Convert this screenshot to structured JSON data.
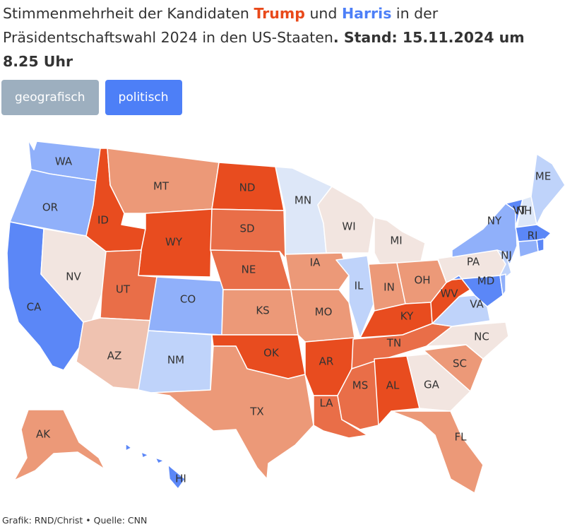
{
  "header": {
    "title_part1": "Stimmenmehrheit der Kandidaten ",
    "trump": "Trump",
    "title_part2": " und ",
    "harris": "Harris",
    "title_part3": " in der Präsidentschaftswahl 2024 in den US-Staaten",
    "stand": ". Stand: 15.11.2024 um 8.25 Uhr"
  },
  "tabs": {
    "geografisch": "geografisch",
    "politisch": "politisch",
    "active": "politisch"
  },
  "colors": {
    "trump": "#e9491a",
    "harris": "#4d7ff7",
    "tab_inactive": "#9dafbf",
    "tab_active": "#4d7ff7",
    "rep_strong": "#e84c1f",
    "rep_medium": "#e96e48",
    "rep_light": "#ec9978",
    "rep_faint": "#efc2b0",
    "tossup": "#f2e5e0",
    "dem_faint": "#dde7f8",
    "dem_light": "#bfd3fa",
    "dem_medium": "#90b0fa",
    "dem_strong": "#5b87f7"
  },
  "states": [
    {
      "id": "WA",
      "level": "dem_medium"
    },
    {
      "id": "OR",
      "level": "dem_medium"
    },
    {
      "id": "CA",
      "level": "dem_strong"
    },
    {
      "id": "NV",
      "level": "tossup"
    },
    {
      "id": "ID",
      "level": "rep_strong"
    },
    {
      "id": "MT",
      "level": "rep_light"
    },
    {
      "id": "WY",
      "level": "rep_strong"
    },
    {
      "id": "UT",
      "level": "rep_medium"
    },
    {
      "id": "AZ",
      "level": "rep_faint"
    },
    {
      "id": "CO",
      "level": "dem_medium"
    },
    {
      "id": "NM",
      "level": "dem_light"
    },
    {
      "id": "ND",
      "level": "rep_strong"
    },
    {
      "id": "SD",
      "level": "rep_medium"
    },
    {
      "id": "NE",
      "level": "rep_medium"
    },
    {
      "id": "KS",
      "level": "rep_light"
    },
    {
      "id": "OK",
      "level": "rep_strong"
    },
    {
      "id": "TX",
      "level": "rep_light"
    },
    {
      "id": "MN",
      "level": "dem_faint"
    },
    {
      "id": "IA",
      "level": "rep_light"
    },
    {
      "id": "MO",
      "level": "rep_light"
    },
    {
      "id": "AR",
      "level": "rep_strong"
    },
    {
      "id": "LA",
      "level": "rep_medium"
    },
    {
      "id": "WI",
      "level": "tossup"
    },
    {
      "id": "IL",
      "level": "dem_light"
    },
    {
      "id": "MI",
      "level": "tossup"
    },
    {
      "id": "IN",
      "level": "rep_light"
    },
    {
      "id": "OH",
      "level": "rep_light"
    },
    {
      "id": "KY",
      "level": "rep_strong"
    },
    {
      "id": "TN",
      "level": "rep_medium"
    },
    {
      "id": "MS",
      "level": "rep_medium"
    },
    {
      "id": "AL",
      "level": "rep_strong"
    },
    {
      "id": "GA",
      "level": "tossup"
    },
    {
      "id": "FL",
      "level": "rep_light"
    },
    {
      "id": "SC",
      "level": "rep_light"
    },
    {
      "id": "NC",
      "level": "tossup"
    },
    {
      "id": "VA",
      "level": "dem_light"
    },
    {
      "id": "WV",
      "level": "rep_strong"
    },
    {
      "id": "PA",
      "level": "tossup"
    },
    {
      "id": "NY",
      "level": "dem_medium"
    },
    {
      "id": "NJ",
      "level": "dem_light"
    },
    {
      "id": "MD",
      "level": "dem_strong"
    },
    {
      "id": "DE",
      "level": "dem_medium"
    },
    {
      "id": "VT",
      "level": "dem_strong"
    },
    {
      "id": "NH",
      "level": "dem_faint"
    },
    {
      "id": "ME",
      "level": "dem_light"
    },
    {
      "id": "MA",
      "level": "dem_strong"
    },
    {
      "id": "RI",
      "level": "dem_strong"
    },
    {
      "id": "CT",
      "level": "dem_medium"
    },
    {
      "id": "AK",
      "level": "rep_light"
    },
    {
      "id": "HI",
      "level": "dem_strong"
    }
  ],
  "footer": {
    "credit": "Grafik: RND/Christ • Quelle: CNN"
  }
}
